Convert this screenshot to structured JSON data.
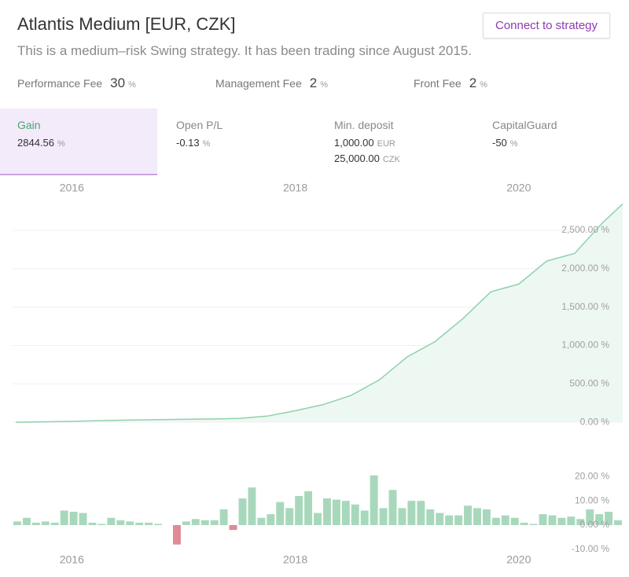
{
  "header": {
    "title": "Atlantis Medium [EUR, CZK]",
    "subtitle": "This is a medium–risk Swing strategy. It has been trading since August 2015.",
    "button": "Connect to strategy"
  },
  "fees": [
    {
      "label": "Performance Fee",
      "value": 30,
      "unit": "%"
    },
    {
      "label": "Management Fee",
      "value": 2,
      "unit": "%"
    },
    {
      "label": "Front Fee",
      "value": 2,
      "unit": "%"
    }
  ],
  "stats": [
    {
      "label": "Gain",
      "lines": [
        {
          "value": 2844.56,
          "unit": "%"
        }
      ]
    },
    {
      "label": "Open P/L",
      "lines": [
        {
          "value": -0.13,
          "unit": "%"
        }
      ]
    },
    {
      "label": "Min. deposit",
      "lines": [
        {
          "value": "1,000.00",
          "unit": "EUR"
        },
        {
          "value": "25,000.00",
          "unit": "CZK"
        }
      ]
    },
    {
      "label": "CapitalGuard",
      "lines": [
        {
          "value": -50,
          "unit": "%"
        }
      ]
    }
  ],
  "chart_data": [
    {
      "type": "line",
      "color": "#8fd1ad",
      "fill": "#eef8f2",
      "grid": true,
      "x": [
        2015.5,
        2015.75,
        2016,
        2016.25,
        2016.5,
        2016.75,
        2017,
        2017.25,
        2017.5,
        2017.75,
        2018,
        2018.25,
        2018.5,
        2018.75,
        2019,
        2019.25,
        2019.5,
        2019.75,
        2020,
        2020.25,
        2020.5,
        2020.75,
        2020.93
      ],
      "values": [
        0,
        5,
        12,
        20,
        28,
        33,
        38,
        42,
        50,
        80,
        150,
        230,
        350,
        550,
        850,
        1050,
        1350,
        1700,
        1800,
        2100,
        2200,
        2600,
        2844
      ],
      "xlim": [
        2015.47,
        2020.93
      ],
      "xticks": [
        2016,
        2018,
        2020
      ],
      "ylim": [
        -50,
        2900
      ],
      "yticks": [
        {
          "value": 0,
          "label": "0.00 %"
        },
        {
          "value": 500,
          "label": "500.00 %"
        },
        {
          "value": 1000,
          "label": "1,000.00 %"
        },
        {
          "value": 1500,
          "label": "1,500.00 %"
        },
        {
          "value": 2000,
          "label": "2,000.00 %"
        },
        {
          "value": 2500,
          "label": "2,500.00 %"
        }
      ]
    },
    {
      "type": "bar",
      "color": "#a8d8bc",
      "negative_color": "#e08a96",
      "grid": false,
      "categories": [
        null,
        null,
        null,
        null,
        null,
        null,
        null,
        null,
        null,
        null,
        null,
        null,
        null,
        null,
        null,
        null,
        null,
        null,
        null,
        null,
        null,
        null,
        null,
        null,
        null,
        null,
        null,
        null,
        null,
        null,
        null,
        null,
        null,
        null,
        null,
        null,
        null,
        null,
        null,
        null,
        null,
        null,
        null,
        null,
        null,
        null,
        null,
        null,
        null,
        null,
        null,
        null,
        null,
        null,
        null,
        null,
        null,
        null,
        null,
        null,
        null,
        null,
        null,
        null,
        null
      ],
      "values": [
        1.5,
        3,
        1,
        1.5,
        1,
        6,
        5.5,
        5,
        1,
        0.5,
        3,
        2,
        1.5,
        1,
        1,
        0.5,
        0,
        -8,
        1.5,
        2.5,
        2,
        2,
        6.5,
        -2,
        11,
        15.5,
        3,
        4.5,
        9.5,
        7,
        12,
        14,
        5,
        11,
        10.5,
        10,
        8.5,
        6,
        20.5,
        7,
        14.5,
        7,
        10,
        10,
        6.5,
        5,
        4,
        4,
        8,
        7,
        6.5,
        3,
        4,
        3,
        1,
        0.5,
        4.5,
        4,
        3,
        3.5,
        2.5,
        6.5,
        4.5,
        5.5,
        2
      ],
      "xlim": [
        2015.47,
        2020.93
      ],
      "xticks": [
        2016,
        2018,
        2020
      ],
      "ylim": [
        -12,
        23
      ],
      "yticks": [
        {
          "value": -10,
          "label": "-10.00 %"
        },
        {
          "value": 0,
          "label": "0.00 %"
        },
        {
          "value": 10,
          "label": "10.00 %"
        },
        {
          "value": 20,
          "label": "20.00 %"
        }
      ]
    }
  ]
}
